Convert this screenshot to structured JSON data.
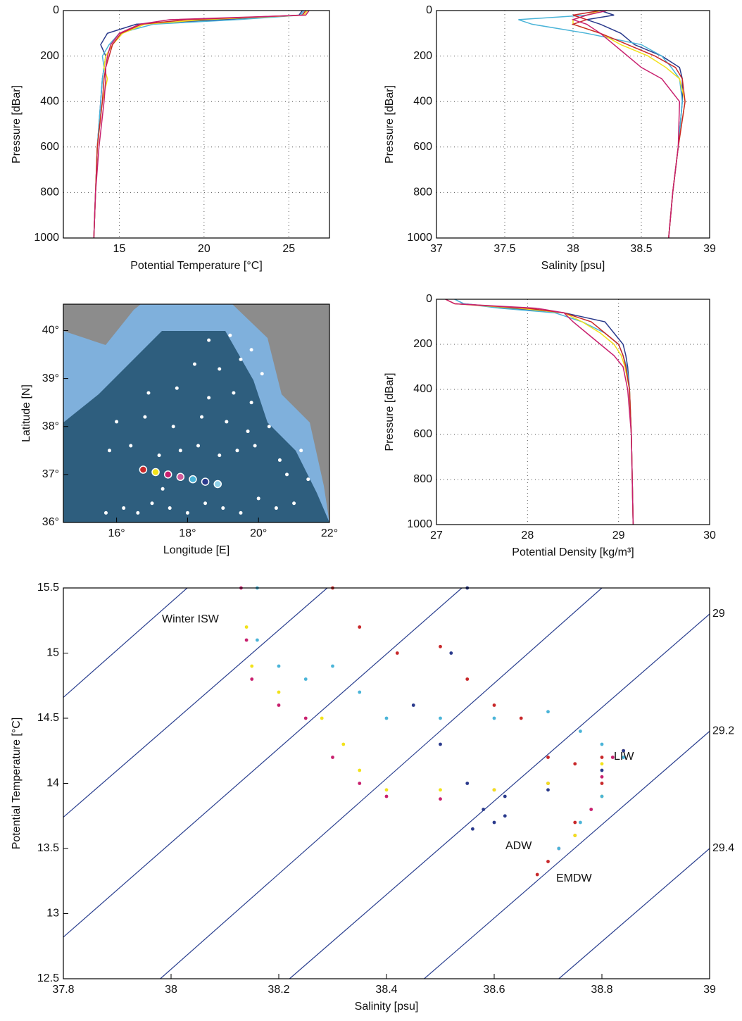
{
  "chart_data": [
    {
      "type": "profile",
      "xlabel": "Potential Temperature [°C]",
      "ylabel": "Pressure [dBar]",
      "xlim": [
        11.7,
        27.4
      ],
      "xticks": [
        15,
        20,
        25
      ],
      "ylim": [
        0,
        1000
      ],
      "yticks": [
        0,
        200,
        400,
        600,
        800,
        1000
      ],
      "y_inverted": true,
      "grid": true,
      "pressure": [
        0,
        20,
        40,
        60,
        100,
        150,
        200,
        250,
        300,
        400,
        600,
        800,
        1000
      ],
      "series": [
        {
          "color": "#2a3a8c",
          "values": [
            25.8,
            25.6,
            21,
            16,
            14.3,
            13.9,
            14.2,
            14.1,
            14.0,
            13.9,
            13.7,
            13.6,
            13.5
          ]
        },
        {
          "color": "#4ab4d8",
          "values": [
            25.9,
            25.7,
            22,
            17,
            15,
            14.4,
            14.0,
            14.1,
            14.0,
            13.9,
            13.7,
            13.6,
            13.5
          ]
        },
        {
          "color": "#f2e21a",
          "values": [
            26.1,
            25.9,
            20,
            16.5,
            15.2,
            14.6,
            14.2,
            14.1,
            14.3,
            14.0,
            13.7,
            13.6,
            13.5
          ]
        },
        {
          "color": "#c8282a",
          "values": [
            26.0,
            25.8,
            19,
            16.3,
            15.1,
            14.6,
            14.4,
            14.2,
            14.1,
            14.0,
            13.7,
            13.6,
            13.5
          ]
        },
        {
          "color": "#c8206e",
          "values": [
            26.2,
            26.0,
            18,
            16.2,
            15.0,
            14.5,
            14.3,
            14.2,
            14.2,
            14.1,
            13.8,
            13.6,
            13.5
          ]
        }
      ]
    },
    {
      "type": "profile",
      "xlabel": "Salinity [psu]",
      "ylabel": "Pressure [dBar]",
      "xlim": [
        37,
        39
      ],
      "xticks": [
        37,
        37.5,
        38,
        38.5,
        39
      ],
      "ylim": [
        0,
        1000
      ],
      "yticks": [
        0,
        200,
        400,
        600,
        800,
        1000
      ],
      "y_inverted": true,
      "grid": true,
      "pressure": [
        0,
        20,
        40,
        60,
        100,
        150,
        200,
        250,
        300,
        400,
        600,
        800,
        1000
      ],
      "series": [
        {
          "color": "#2a3a8c",
          "values": [
            38.2,
            38.3,
            38.1,
            38.2,
            38.35,
            38.45,
            38.65,
            38.78,
            38.8,
            38.8,
            38.77,
            38.73,
            38.7
          ]
        },
        {
          "color": "#4ab4d8",
          "values": [
            38.2,
            38.1,
            37.6,
            37.7,
            38.1,
            38.5,
            38.65,
            38.72,
            38.78,
            38.8,
            38.77,
            38.73,
            38.7
          ]
        },
        {
          "color": "#f2e21a",
          "values": [
            38.2,
            38.1,
            38.0,
            38.0,
            38.2,
            38.35,
            38.55,
            38.68,
            38.78,
            38.82,
            38.77,
            38.73,
            38.7
          ]
        },
        {
          "color": "#c8282a",
          "values": [
            38.2,
            38.0,
            38.1,
            38.0,
            38.2,
            38.4,
            38.6,
            38.75,
            38.8,
            38.82,
            38.77,
            38.73,
            38.7
          ]
        },
        {
          "color": "#c8206e",
          "values": [
            38.25,
            38.1,
            38.0,
            38.1,
            38.2,
            38.3,
            38.4,
            38.5,
            38.65,
            38.78,
            38.77,
            38.73,
            38.7
          ]
        }
      ]
    },
    {
      "type": "map",
      "xlabel": "Longitude [E]",
      "ylabel": "Latitude [N]",
      "xlim": [
        14.5,
        22
      ],
      "xticks": [
        {
          "value": 16,
          "label": "16°"
        },
        {
          "value": 18,
          "label": "18°"
        },
        {
          "value": 20,
          "label": "20°"
        },
        {
          "value": 22,
          "label": "22°"
        }
      ],
      "ylim": [
        36,
        40.55
      ],
      "yticks": [
        {
          "value": 36,
          "label": "36°"
        },
        {
          "value": 37,
          "label": "37°"
        },
        {
          "value": 38,
          "label": "38°"
        },
        {
          "value": 39,
          "label": "39°"
        },
        {
          "value": 40,
          "label": "40°"
        }
      ],
      "stations": {
        "x": [
          15.7,
          16.2,
          16.6,
          17.0,
          17.5,
          18.0,
          18.5,
          19.0,
          19.5,
          20.0,
          20.5,
          21.0,
          15.8,
          16.4,
          17.2,
          17.8,
          18.3,
          18.9,
          19.4,
          19.9,
          20.6,
          21.2,
          16.0,
          16.8,
          17.6,
          18.4,
          19.1,
          19.7,
          20.3,
          16.9,
          17.7,
          18.6,
          19.3,
          19.8,
          18.2,
          18.9,
          19.5,
          20.1,
          18.6,
          19.2,
          19.8,
          17.3,
          21.4,
          20.8
        ],
        "y": [
          36.2,
          36.3,
          36.2,
          36.4,
          36.3,
          36.2,
          36.4,
          36.3,
          36.2,
          36.5,
          36.3,
          36.4,
          37.5,
          37.6,
          37.4,
          37.5,
          37.6,
          37.4,
          37.5,
          37.6,
          37.3,
          37.5,
          38.1,
          38.2,
          38.0,
          38.2,
          38.1,
          37.9,
          38.0,
          38.7,
          38.8,
          38.6,
          38.7,
          38.5,
          39.3,
          39.2,
          39.4,
          39.1,
          39.8,
          39.9,
          39.6,
          36.7,
          36.9,
          37.0
        ]
      },
      "profile_stations": {
        "x": [
          16.75,
          17.1,
          17.45,
          17.8,
          18.15,
          18.5,
          18.85
        ],
        "y": [
          37.1,
          37.05,
          37.0,
          36.95,
          36.9,
          36.85,
          36.8
        ],
        "colors": [
          "#c8282a",
          "#f2e21a",
          "#c8206e",
          "#d05a9a",
          "#4ab4d8",
          "#2a3a8c",
          "#8fd0e8"
        ]
      }
    },
    {
      "type": "profile",
      "xlabel": "Potential Density [kg/m³]",
      "ylabel": "Pressure [dBar]",
      "xlim": [
        27,
        30
      ],
      "xticks": [
        27,
        28,
        29,
        30
      ],
      "ylim": [
        0,
        1000
      ],
      "yticks": [
        0,
        200,
        400,
        600,
        800,
        1000
      ],
      "y_inverted": true,
      "grid": true,
      "pressure": [
        0,
        20,
        40,
        60,
        100,
        150,
        200,
        250,
        300,
        400,
        600,
        800,
        1000
      ],
      "series": [
        {
          "color": "#2a3a8c",
          "values": [
            27.2,
            27.3,
            27.8,
            28.4,
            28.85,
            28.95,
            29.05,
            29.08,
            29.1,
            29.12,
            29.14,
            29.15,
            29.16
          ]
        },
        {
          "color": "#4ab4d8",
          "values": [
            27.2,
            27.3,
            27.7,
            28.3,
            28.6,
            28.85,
            29.0,
            29.05,
            29.09,
            29.12,
            29.14,
            29.15,
            29.16
          ]
        },
        {
          "color": "#f2e21a",
          "values": [
            27.1,
            27.2,
            27.9,
            28.4,
            28.6,
            28.8,
            28.95,
            29.03,
            29.07,
            29.12,
            29.14,
            29.15,
            29.16
          ]
        },
        {
          "color": "#c8282a",
          "values": [
            27.1,
            27.2,
            28.0,
            28.4,
            28.7,
            28.85,
            29.0,
            29.05,
            29.08,
            29.12,
            29.14,
            29.15,
            29.16
          ]
        },
        {
          "color": "#c8206e",
          "values": [
            27.1,
            27.2,
            28.1,
            28.4,
            28.5,
            28.65,
            28.8,
            28.95,
            29.05,
            29.1,
            29.14,
            29.15,
            29.16
          ]
        }
      ]
    },
    {
      "type": "scatter",
      "xlabel": "Salinity [psu]",
      "ylabel": "Potential Temperature [°C]",
      "xlim": [
        37.8,
        39
      ],
      "xticks": [
        37.8,
        38,
        38.2,
        38.4,
        38.6,
        38.8,
        39
      ],
      "ylim": [
        12.5,
        15.5
      ],
      "yticks": [
        12.5,
        13,
        13.5,
        14,
        14.5,
        15,
        15.5
      ],
      "grid": false,
      "annotations": [
        "Winter ISW",
        "LIW",
        "ADW",
        "EMDW"
      ],
      "isopycnals": [
        {
          "x": [
            37.8,
            38.03
          ],
          "y": [
            14.66,
            15.5
          ]
        },
        {
          "x": [
            37.8,
            38.29
          ],
          "y": [
            13.74,
            15.5
          ]
        },
        {
          "x": [
            37.8,
            38.54
          ],
          "y": [
            12.82,
            15.5
          ]
        },
        {
          "x": [
            37.98,
            38.8
          ],
          "y": [
            12.5,
            15.5
          ]
        },
        {
          "x": [
            38.22,
            39
          ],
          "y": [
            12.5,
            15.3
          ],
          "label": "29"
        },
        {
          "x": [
            38.47,
            39
          ],
          "y": [
            12.5,
            14.4
          ],
          "label": "29.2"
        },
        {
          "x": [
            38.72,
            39
          ],
          "y": [
            12.5,
            13.5
          ],
          "label": "29.4"
        }
      ],
      "series": [
        {
          "color": "#c8206e",
          "x": [
            38.13,
            38.14,
            38.15,
            38.2,
            38.25,
            38.3,
            38.35,
            38.4,
            38.5,
            38.6,
            38.7,
            38.8,
            38.82,
            38.78,
            38.75,
            38.72
          ],
          "values": [
            15.5,
            15.1,
            14.8,
            14.6,
            14.5,
            14.2,
            14.0,
            13.9,
            13.88,
            13.95,
            14.0,
            14.05,
            14.2,
            13.8,
            13.6,
            13.5
          ]
        },
        {
          "color": "#f2e21a",
          "x": [
            38.14,
            38.15,
            38.2,
            38.28,
            38.32,
            38.35,
            38.4,
            38.5,
            38.6,
            38.7,
            38.8,
            38.84,
            38.8,
            38.75
          ],
          "values": [
            15.2,
            14.9,
            14.7,
            14.5,
            14.3,
            14.1,
            13.95,
            13.95,
            13.95,
            14.0,
            14.15,
            14.25,
            13.9,
            13.6
          ]
        },
        {
          "color": "#4ab4d8",
          "x": [
            38.16,
            38.16,
            38.2,
            38.25,
            38.3,
            38.35,
            38.4,
            38.5,
            38.6,
            38.7,
            38.76,
            38.8,
            38.84,
            38.8,
            38.76,
            38.72
          ],
          "values": [
            15.5,
            15.1,
            14.9,
            14.8,
            14.9,
            14.7,
            14.5,
            14.5,
            14.5,
            14.55,
            14.4,
            14.3,
            14.2,
            13.9,
            13.7,
            13.5
          ]
        },
        {
          "color": "#c8282a",
          "x": [
            38.3,
            38.35,
            38.42,
            38.5,
            38.55,
            38.6,
            38.65,
            38.7,
            38.75,
            38.8,
            38.84,
            38.8,
            38.75,
            38.7,
            38.68
          ],
          "values": [
            15.5,
            15.2,
            15.0,
            15.05,
            14.8,
            14.6,
            14.5,
            14.2,
            14.15,
            14.2,
            14.25,
            14.0,
            13.7,
            13.4,
            13.3
          ]
        },
        {
          "color": "#2a3a8c",
          "x": [
            38.55,
            38.52,
            38.45,
            38.5,
            38.55,
            38.58,
            38.6,
            38.62,
            38.56,
            38.62,
            38.7,
            38.8,
            38.84
          ],
          "values": [
            15.5,
            15.0,
            14.6,
            14.3,
            14.0,
            13.8,
            13.7,
            13.9,
            13.65,
            13.75,
            13.95,
            14.1,
            14.25
          ]
        }
      ]
    }
  ]
}
